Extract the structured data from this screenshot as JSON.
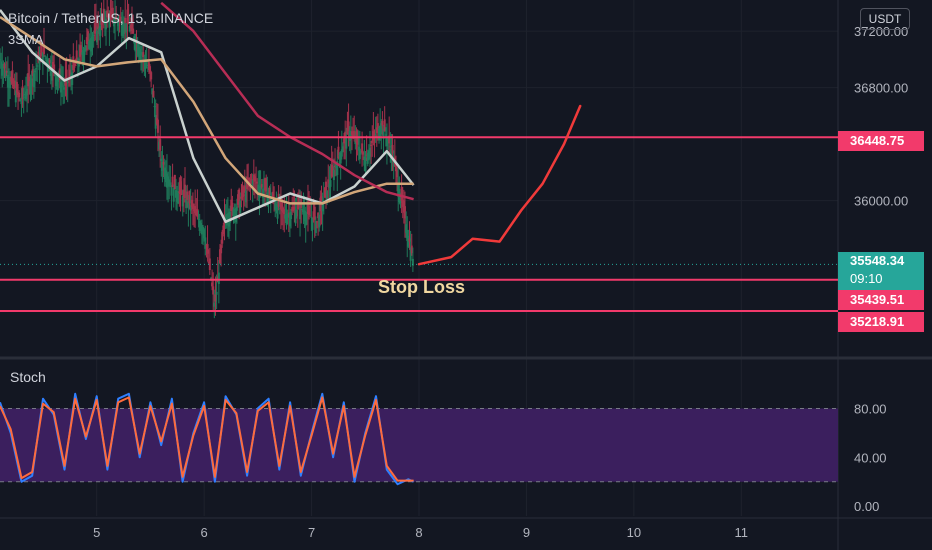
{
  "header": {
    "symbol_line": "Bitcoin / TetherUS, 15, BINANCE",
    "indicator": "3SMA"
  },
  "currency_button": "USDT",
  "stoch_label": "Stoch",
  "annotation": "Stop Loss",
  "colors": {
    "background": "#131722",
    "level_line": "#f23a6b",
    "projection": "#f03a3a",
    "sma_fast": "#c9d1cf",
    "sma_mid": "#d2a679",
    "sma_slow": "#b72d55",
    "stoch_band": "#3b1f5e",
    "stoch_k": "#2f7fff",
    "stoch_d": "#ff6b3d",
    "last_price_tag": "#26a69a"
  },
  "chart_data": [
    {
      "type": "candlestick",
      "symbol": "Bitcoin / TetherUS",
      "interval": "15",
      "exchange": "BINANCE",
      "x_ticks": [
        "5",
        "6",
        "7",
        "8",
        "9",
        "10",
        "11"
      ],
      "y_ticks": [
        "37200.00",
        "36800.00",
        "36000.00"
      ],
      "ylim": [
        34900,
        37420
      ],
      "xlim": [
        4.1,
        11.9
      ],
      "horizontal_levels": [
        {
          "label": "36448.75",
          "value": 36448.75
        },
        {
          "label": "35439.51",
          "value": 35439.51
        },
        {
          "label": "35218.91",
          "value": 35218.91
        }
      ],
      "last_price": {
        "label": "35548.34",
        "countdown": "09:10",
        "value": 35548.34
      },
      "projection_path": {
        "x": [
          8.0,
          8.3,
          8.5,
          8.75,
          8.95,
          9.15,
          9.35,
          9.5
        ],
        "y": [
          35550,
          35600,
          35730,
          35710,
          35930,
          36120,
          36400,
          36670
        ]
      },
      "approx_price_path": {
        "x": [
          4.1,
          4.3,
          4.5,
          4.7,
          4.9,
          5.1,
          5.3,
          5.5,
          5.6,
          5.7,
          5.85,
          6.0,
          6.1,
          6.2,
          6.3,
          6.45,
          6.6,
          6.75,
          6.9,
          7.05,
          7.2,
          7.35,
          7.5,
          7.65,
          7.75,
          7.85,
          7.95
        ],
        "y": [
          37000,
          36700,
          37050,
          36800,
          37100,
          37300,
          37250,
          36900,
          36300,
          36100,
          36000,
          35800,
          35250,
          35900,
          35950,
          36150,
          36050,
          35900,
          35950,
          35850,
          36200,
          36500,
          36300,
          36550,
          36350,
          35950,
          35560
        ]
      },
      "sma": [
        {
          "x": [
            4.1,
            4.4,
            4.7,
            5.0,
            5.3,
            5.6,
            5.9,
            6.2,
            6.5,
            6.8,
            7.1,
            7.4,
            7.7,
            7.95
          ],
          "y": [
            37350,
            37050,
            36850,
            36950,
            37150,
            37050,
            36300,
            35850,
            35950,
            36050,
            35980,
            36100,
            36350,
            36110
          ]
        },
        {
          "x": [
            4.1,
            4.4,
            4.7,
            5.0,
            5.3,
            5.6,
            5.9,
            6.2,
            6.5,
            6.8,
            7.1,
            7.4,
            7.7,
            7.95
          ],
          "y": [
            37300,
            37150,
            37000,
            36950,
            36980,
            37000,
            36700,
            36300,
            36050,
            35980,
            35980,
            36060,
            36120,
            36120
          ]
        },
        {
          "x": [
            5.6,
            5.9,
            6.2,
            6.5,
            6.8,
            7.1,
            7.4,
            7.7,
            7.95
          ],
          "y": [
            37400,
            37200,
            36900,
            36600,
            36450,
            36330,
            36180,
            36060,
            36010
          ]
        }
      ]
    },
    {
      "type": "line",
      "name": "Stoch",
      "y_ticks": [
        "80.00",
        "40.00",
        "0.00"
      ],
      "ylim": [
        -8,
        118
      ],
      "band": [
        20,
        80
      ],
      "x": [
        4.1,
        4.2,
        4.3,
        4.4,
        4.5,
        4.6,
        4.7,
        4.8,
        4.9,
        5.0,
        5.1,
        5.2,
        5.3,
        5.4,
        5.5,
        5.6,
        5.7,
        5.8,
        5.9,
        6.0,
        6.1,
        6.2,
        6.3,
        6.4,
        6.5,
        6.6,
        6.7,
        6.8,
        6.9,
        7.0,
        7.1,
        7.2,
        7.3,
        7.4,
        7.5,
        7.6,
        7.7,
        7.8,
        7.9,
        7.95
      ],
      "series": [
        {
          "values": [
            85,
            60,
            20,
            25,
            88,
            75,
            30,
            92,
            55,
            90,
            30,
            88,
            92,
            40,
            85,
            50,
            88,
            20,
            60,
            85,
            20,
            90,
            75,
            25,
            80,
            88,
            30,
            85,
            25,
            60,
            92,
            40,
            85,
            20,
            60,
            90,
            30,
            18,
            22,
            20
          ]
        },
        {
          "values": [
            82,
            63,
            23,
            28,
            84,
            77,
            33,
            88,
            57,
            87,
            33,
            85,
            89,
            43,
            82,
            53,
            84,
            24,
            58,
            82,
            24,
            87,
            76,
            28,
            78,
            85,
            33,
            82,
            28,
            58,
            89,
            43,
            82,
            24,
            58,
            87,
            33,
            21,
            21,
            21
          ]
        }
      ],
      "x_ticks": [
        "5",
        "6",
        "7",
        "8",
        "9",
        "10",
        "11"
      ]
    }
  ]
}
